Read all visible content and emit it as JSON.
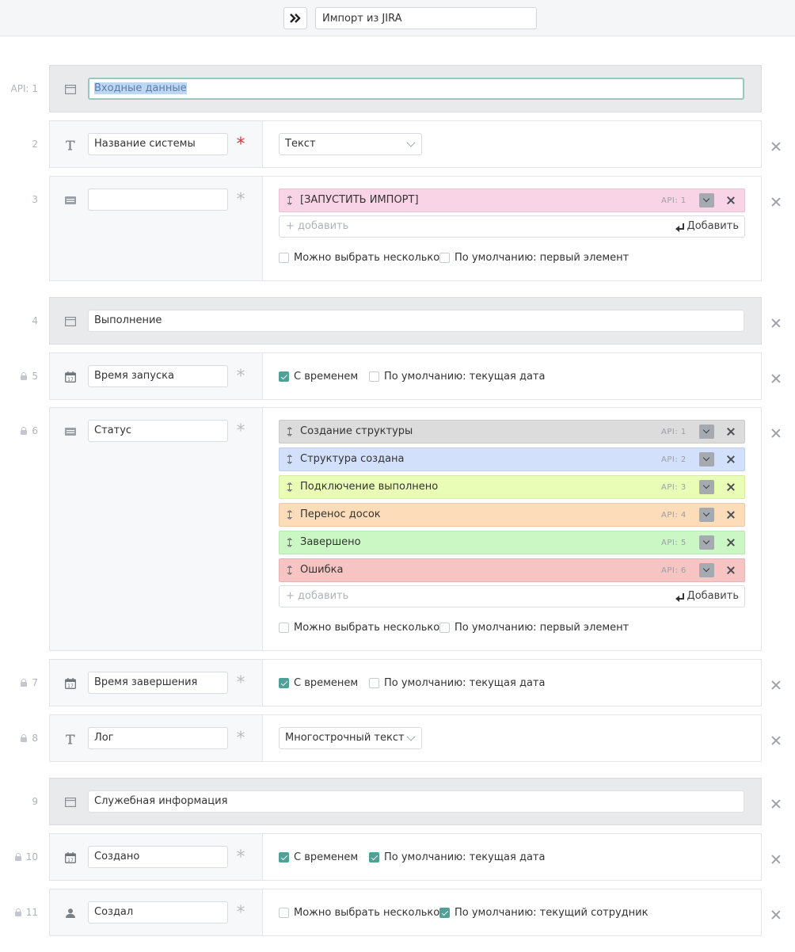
{
  "header": {
    "title_value": "Импорт из JIRA",
    "expand_icon": "double-chevron-right-icon"
  },
  "sections": {
    "s1": {
      "num": "API: 1",
      "title": "Входные данные"
    },
    "s4": {
      "num": "4",
      "title": "Выполнение"
    },
    "s9": {
      "num": "9",
      "title": "Служебная информация"
    }
  },
  "fields": {
    "f2": {
      "num": "2",
      "name": "Название системы",
      "type_icon": "text-type-icon",
      "required": true,
      "dropdown": "Текст"
    },
    "f3": {
      "num": "3",
      "name": "",
      "type_icon": "list-type-icon",
      "required": false,
      "options": [
        {
          "label": "[ЗАПУСТИТЬ ИМПОРТ]",
          "api": "API: 1",
          "color": "#f9d3e6"
        }
      ],
      "add_placeholder": "+ добавить",
      "add_button": "Добавить",
      "multi_label": "Можно выбрать несколько",
      "multi_checked": false,
      "default_label": "По умолчанию: первый элемент",
      "default_checked": false
    },
    "f5": {
      "num": "5",
      "locked": true,
      "name": "Время запуска",
      "type_icon": "calendar-icon",
      "required": false,
      "time_label": "С временем",
      "time_checked": true,
      "default_label": "По умолчанию: текущая дата",
      "default_checked": false
    },
    "f6": {
      "num": "6",
      "locked": true,
      "name": "Статус",
      "type_icon": "list-type-icon",
      "required": false,
      "options": [
        {
          "label": "Создание структуры",
          "api": "API: 1",
          "color": "#dcdcdc"
        },
        {
          "label": "Структура создана",
          "api": "API: 2",
          "color": "#d2e0fb"
        },
        {
          "label": "Подключение выполнено",
          "api": "API: 3",
          "color": "#eafdb6"
        },
        {
          "label": "Перенос досок",
          "api": "API: 4",
          "color": "#fddcb9"
        },
        {
          "label": "Завершено",
          "api": "API: 5",
          "color": "#cbf7c4"
        },
        {
          "label": "Ошибка",
          "api": "API: 6",
          "color": "#f7c4c4"
        }
      ],
      "add_placeholder": "+ добавить",
      "add_button": "Добавить",
      "multi_label": "Можно выбрать несколько",
      "multi_checked": false,
      "default_label": "По умолчанию: первый элемент",
      "default_checked": false
    },
    "f7": {
      "num": "7",
      "locked": true,
      "name": "Время завершения",
      "type_icon": "calendar-icon",
      "required": false,
      "time_label": "С временем",
      "time_checked": true,
      "default_label": "По умолчанию: текущая дата",
      "default_checked": false
    },
    "f8": {
      "num": "8",
      "locked": true,
      "name": "Лог",
      "type_icon": "text-type-icon",
      "required": false,
      "dropdown": "Многострочный текст"
    },
    "f10": {
      "num": "10",
      "locked": true,
      "name": "Создано",
      "type_icon": "calendar-icon",
      "required": false,
      "time_label": "С временем",
      "time_checked": true,
      "default_label": "По умолчанию: текущая дата",
      "default_checked": true
    },
    "f11": {
      "num": "11",
      "locked": true,
      "name": "Создал",
      "type_icon": "user-icon",
      "required": false,
      "multi_label": "Можно выбрать несколько",
      "multi_checked": false,
      "default_label": "По умолчанию: текущий сотрудник",
      "default_checked": true
    }
  },
  "colors": {
    "accent": "#4fa197",
    "required": "#d23a3a",
    "section_bg": "#e9eaec"
  }
}
